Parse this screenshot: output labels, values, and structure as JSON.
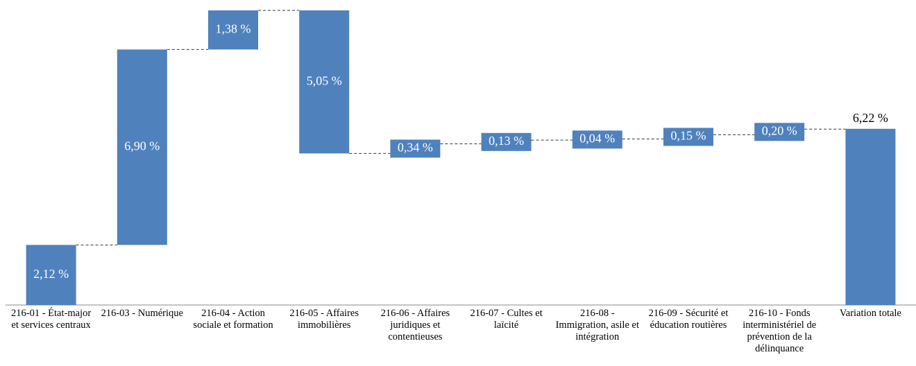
{
  "chart_data": {
    "type": "waterfall",
    "categories": [
      "216-01 - État-major et services centraux",
      "216-03 - Numérique",
      "216-04 - Action sociale et formation",
      "216-05 - Affaires immobilières",
      "216-06 - Affaires juridiques et contentieuses",
      "216-07 - Cultes et laïcité",
      "216-08 - Immigration, asile et intégration",
      "216-09 - Sécurité et éducation routières",
      "216-10 - Fonds interministériel de prévention de la délinquance",
      "Variation totale"
    ],
    "values": [
      2.12,
      6.9,
      1.38,
      -5.05,
      0.34,
      0.13,
      0.04,
      0.15,
      0.2,
      6.22
    ],
    "value_labels": [
      "2,12 %",
      "6,90 %",
      "1,38 %",
      "5,05 %",
      "0,34 %",
      "0,13 %",
      "0,04 %",
      "0,15 %",
      "0,20 %",
      "6,22 %"
    ],
    "color": "#4f81bd",
    "ylim": [
      0,
      10.4
    ]
  }
}
